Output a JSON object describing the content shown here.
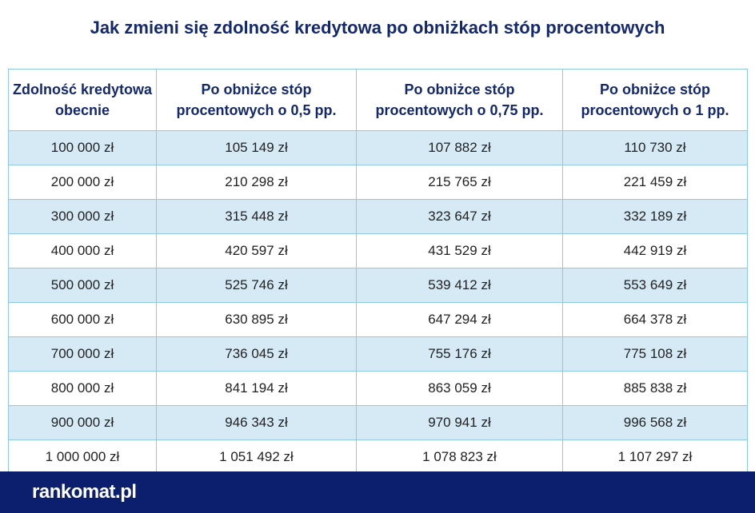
{
  "header": {
    "title": "Jak zmieni się zdolność kredytowa po obniżkach stóp procentowych"
  },
  "table": {
    "headers": [
      "Zdolność kredytowa obecnie",
      "Po obniżce stóp procentowych o 0,5 pp.",
      "Po obniżce stóp procentowych o 0,75 pp.",
      "Po obniżce stóp procentowych o 1 pp."
    ],
    "rows": [
      [
        "100 000 zł",
        "105 149 zł",
        "107 882 zł",
        "110 730 zł"
      ],
      [
        "200 000 zł",
        "210 298 zł",
        "215 765 zł",
        "221 459 zł"
      ],
      [
        "300 000 zł",
        "315 448 zł",
        "323 647 zł",
        "332 189 zł"
      ],
      [
        "400 000 zł",
        "420 597 zł",
        "431 529 zł",
        "442 919 zł"
      ],
      [
        "500 000 zł",
        "525 746 zł",
        "539 412 zł",
        "553 649 zł"
      ],
      [
        "600 000 zł",
        "630 895 zł",
        "647 294 zł",
        "664 378 zł"
      ],
      [
        "700 000 zł",
        "736 045 zł",
        "755 176 zł",
        "775 108 zł"
      ],
      [
        "800 000 zł",
        "841 194 zł",
        "863 059 zł",
        "885 838 zł"
      ],
      [
        "900 000 zł",
        "946 343 zł",
        "970 941 zł",
        "996 568 zł"
      ],
      [
        "1 000 000 zł",
        "1 051 492 zł",
        "1 078 823 zł",
        "1 107 297 zł"
      ]
    ]
  },
  "footer": {
    "logo": "rankomat.pl"
  }
}
